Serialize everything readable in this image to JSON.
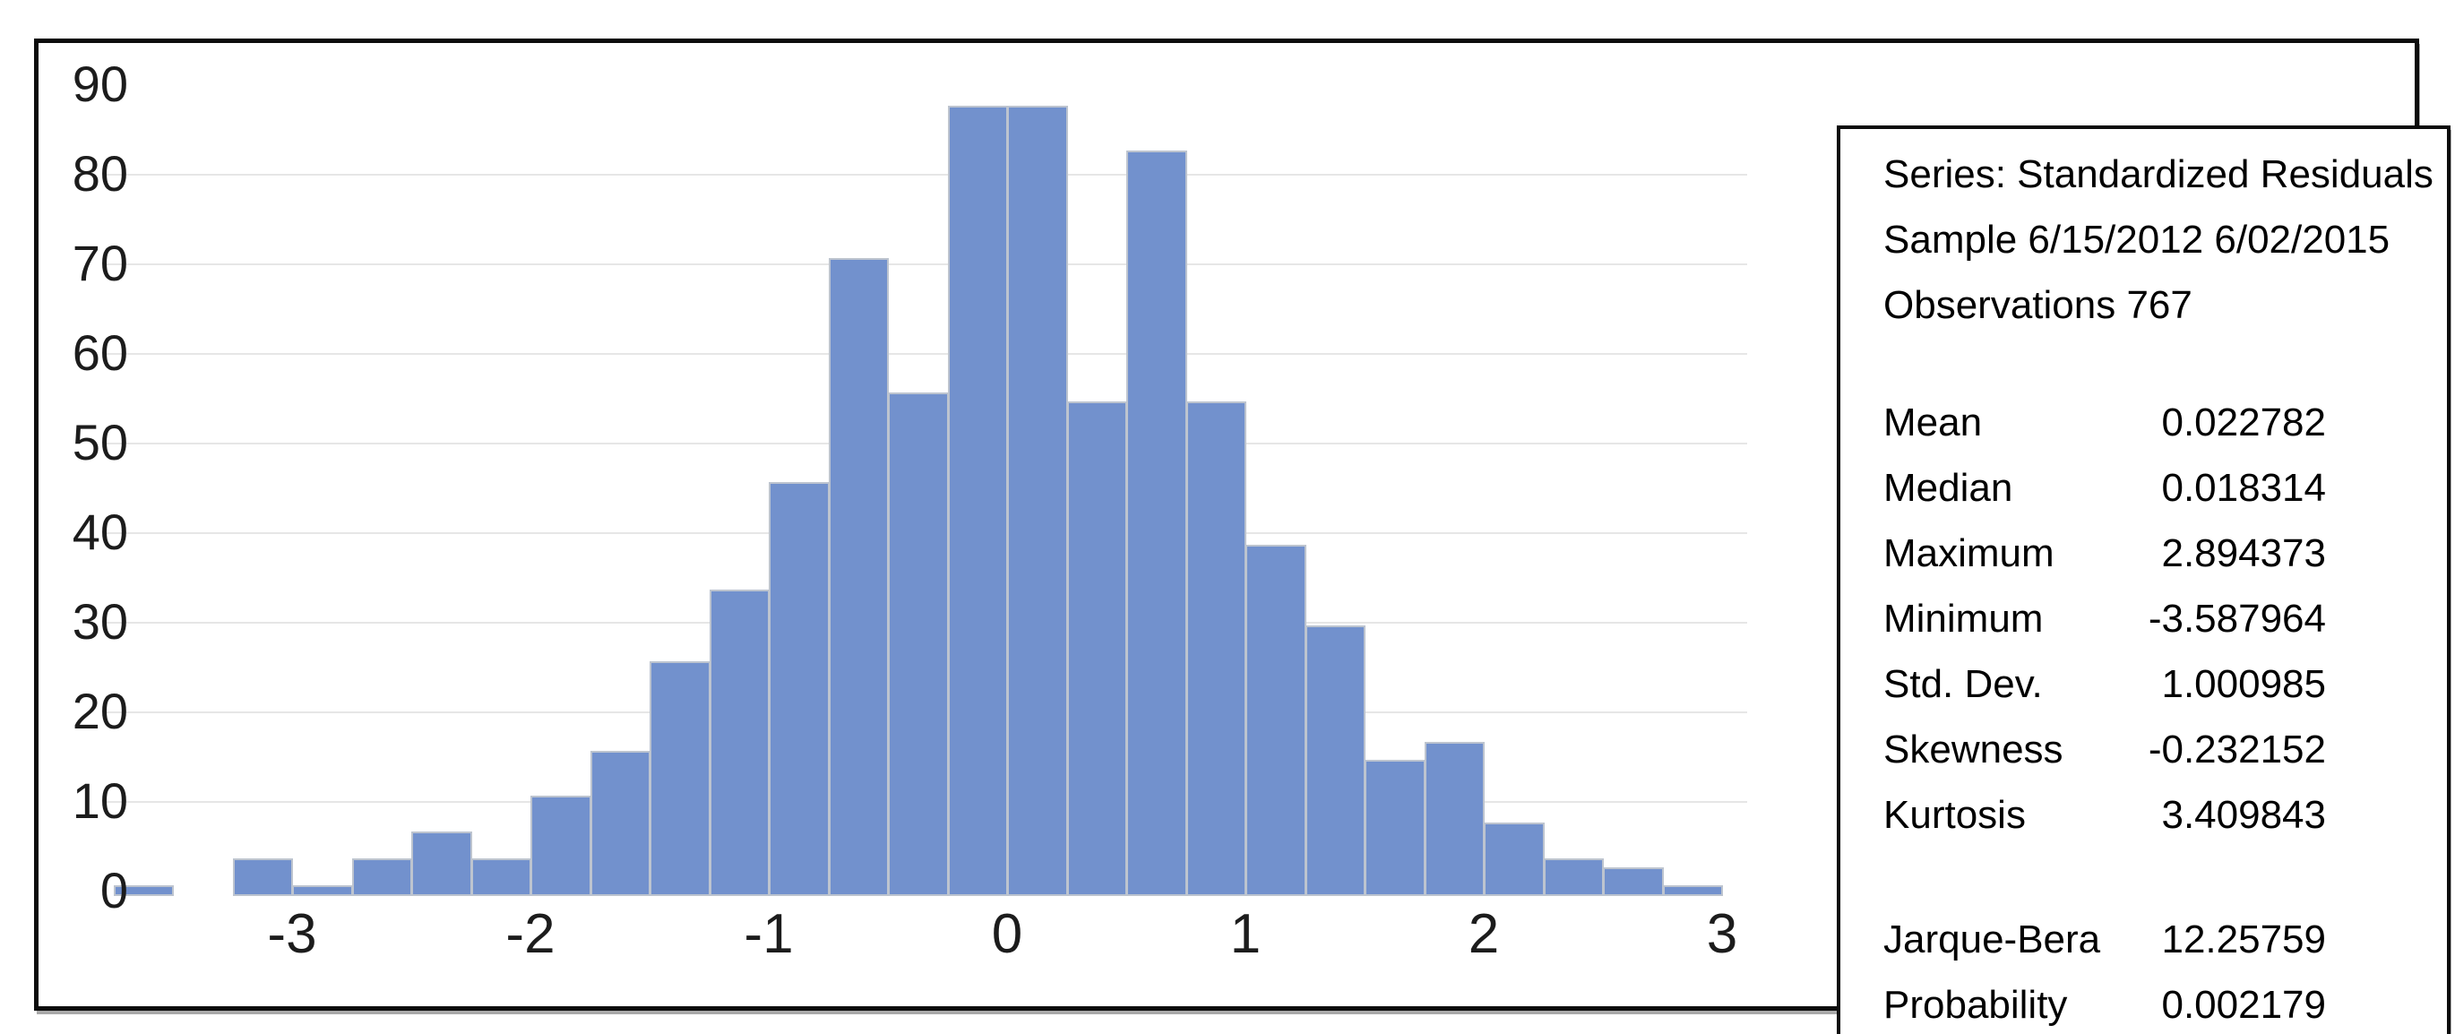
{
  "chart_data": {
    "type": "bar",
    "subtype": "histogram",
    "title": "",
    "xlabel": "",
    "ylabel": "",
    "bin_width": 0.25,
    "bins": [
      {
        "start": -3.75,
        "count": 1
      },
      {
        "start": -3.5,
        "count": 0
      },
      {
        "start": -3.25,
        "count": 4
      },
      {
        "start": -3.0,
        "count": 1
      },
      {
        "start": -2.75,
        "count": 4
      },
      {
        "start": -2.5,
        "count": 7
      },
      {
        "start": -2.25,
        "count": 4
      },
      {
        "start": -2.0,
        "count": 11
      },
      {
        "start": -1.75,
        "count": 16
      },
      {
        "start": -1.5,
        "count": 26
      },
      {
        "start": -1.25,
        "count": 34
      },
      {
        "start": -1.0,
        "count": 46
      },
      {
        "start": -0.75,
        "count": 71
      },
      {
        "start": -0.5,
        "count": 56
      },
      {
        "start": -0.25,
        "count": 88
      },
      {
        "start": 0.0,
        "count": 88
      },
      {
        "start": 0.25,
        "count": 55
      },
      {
        "start": 0.5,
        "count": 83
      },
      {
        "start": 0.75,
        "count": 55
      },
      {
        "start": 1.0,
        "count": 39
      },
      {
        "start": 1.25,
        "count": 30
      },
      {
        "start": 1.5,
        "count": 15
      },
      {
        "start": 1.75,
        "count": 17
      },
      {
        "start": 2.0,
        "count": 8
      },
      {
        "start": 2.25,
        "count": 4
      },
      {
        "start": 2.5,
        "count": 3
      },
      {
        "start": 2.75,
        "count": 1
      }
    ],
    "x_ticks": [
      -3,
      -2,
      -1,
      0,
      1,
      2,
      3
    ],
    "y_ticks": [
      0,
      10,
      20,
      30,
      40,
      50,
      60,
      70,
      80,
      90
    ],
    "ylim": [
      0,
      95
    ],
    "grid": "horizontal",
    "legend": "none",
    "colors": {
      "bar_fill": "#7291cd",
      "bar_border": "#bdc4cf",
      "gridline": "#e6e6e6",
      "frame_border": "#0c0c0c",
      "text": "#1c1c1c"
    }
  },
  "stats_box": {
    "header_lines": [
      "Series: Standardized Residuals",
      "Sample 6/15/2012 6/02/2015",
      "Observations 767"
    ],
    "stats": [
      {
        "label": "Mean",
        "value": "0.022782"
      },
      {
        "label": "Median",
        "value": "0.018314"
      },
      {
        "label": "Maximum",
        "value": "2.894373"
      },
      {
        "label": "Minimum",
        "value": "-3.587964"
      },
      {
        "label": "Std. Dev.",
        "value": "1.000985"
      },
      {
        "label": "Skewness",
        "value": "-0.232152"
      },
      {
        "label": "Kurtosis",
        "value": "3.409843"
      }
    ],
    "tests": [
      {
        "label": "Jarque-Bera",
        "value": "12.25759"
      },
      {
        "label": "Probability",
        "value": "0.002179"
      }
    ]
  }
}
